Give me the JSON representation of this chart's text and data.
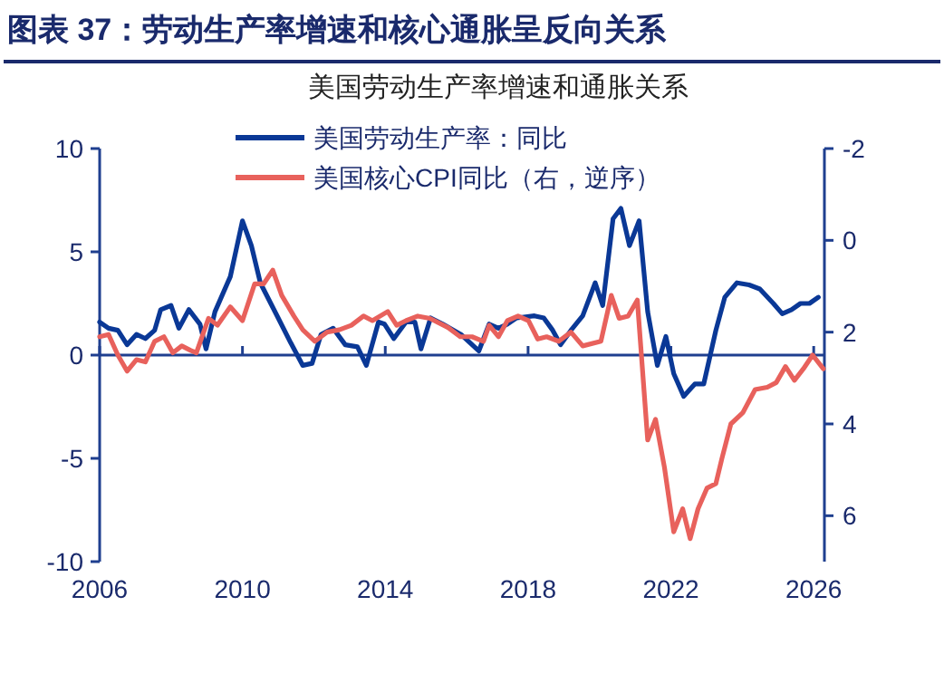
{
  "chart_data": {
    "type": "line",
    "title": "图表 37：劳动生产率增速和核心通胀呈反向关系",
    "subtitle": "美国劳动生产率增速和通胀关系",
    "xlim": [
      2006,
      2026.3
    ],
    "xticks": [
      2006,
      2010,
      2014,
      2018,
      2022,
      2026
    ],
    "ylim": [
      -10,
      10
    ],
    "yticks": [
      -10,
      -5,
      0,
      5,
      10
    ],
    "y2lim": [
      7,
      -2
    ],
    "y2ticks": [
      6,
      4,
      2,
      0,
      -2
    ],
    "legend": "top",
    "grid": false,
    "ref_lines": [
      {
        "axis": "y",
        "value": 0,
        "color": "#1f3f8f"
      }
    ],
    "series": [
      {
        "name": "美国劳动生产率：同比",
        "color": "#0a3896",
        "x": [
          2006.0,
          2006.25,
          2006.51,
          2006.77,
          2007.03,
          2007.28,
          2007.54,
          2007.71,
          2008.0,
          2008.22,
          2008.5,
          2008.81,
          2008.98,
          2009.23,
          2009.66,
          2010.0,
          2010.25,
          2010.5,
          2011.0,
          2011.35,
          2011.69,
          2011.95,
          2012.2,
          2012.54,
          2012.88,
          2013.22,
          2013.47,
          2013.81,
          2013.98,
          2014.24,
          2014.58,
          2014.83,
          2015.0,
          2015.27,
          2015.61,
          2016.12,
          2016.62,
          2016.91,
          2017.17,
          2017.42,
          2017.68,
          2018.18,
          2018.44,
          2018.69,
          2018.91,
          2019.2,
          2019.53,
          2019.88,
          2020.09,
          2020.38,
          2020.6,
          2020.84,
          2021.11,
          2021.35,
          2021.62,
          2021.86,
          2022.08,
          2022.36,
          2022.67,
          2022.92,
          2023.26,
          2023.51,
          2023.85,
          2024.19,
          2024.49,
          2024.87,
          2025.12,
          2025.38,
          2025.63,
          2025.88,
          2026.13
        ],
        "values": [
          1.6,
          1.3,
          1.2,
          0.5,
          1.0,
          0.8,
          1.2,
          2.2,
          2.4,
          1.3,
          2.2,
          1.5,
          0.3,
          2.1,
          3.8,
          6.5,
          5.3,
          3.5,
          1.8,
          0.6,
          -0.5,
          -0.4,
          1.0,
          1.3,
          0.5,
          0.4,
          -0.5,
          1.6,
          1.5,
          0.8,
          1.6,
          1.6,
          0.3,
          1.8,
          1.5,
          1.0,
          0.2,
          1.5,
          1.3,
          1.5,
          1.8,
          1.9,
          1.8,
          1.2,
          0.5,
          1.2,
          1.9,
          3.5,
          2.4,
          6.6,
          7.1,
          5.3,
          6.5,
          2.1,
          -0.5,
          0.9,
          -0.9,
          -2.0,
          -1.4,
          -1.4,
          1.2,
          2.8,
          3.5,
          3.4,
          3.2,
          2.5,
          2.0,
          2.2,
          2.5,
          2.5,
          2.8
        ]
      },
      {
        "name": "美国核心CPI同比（右，逆序）",
        "color": "#e8615c",
        "axis": "y2",
        "x": [
          2006.0,
          2006.25,
          2006.51,
          2006.77,
          2007.03,
          2007.28,
          2007.54,
          2007.8,
          2008.05,
          2008.3,
          2008.55,
          2008.71,
          2009.05,
          2009.3,
          2009.66,
          2010.0,
          2010.34,
          2010.59,
          2010.85,
          2011.1,
          2011.44,
          2011.69,
          2012.03,
          2012.37,
          2012.71,
          2013.05,
          2013.39,
          2013.64,
          2014.07,
          2014.32,
          2014.58,
          2014.91,
          2015.25,
          2015.76,
          2016.1,
          2016.43,
          2016.75,
          2016.91,
          2017.17,
          2017.42,
          2017.72,
          2018.01,
          2018.27,
          2018.52,
          2018.86,
          2019.2,
          2019.53,
          2020.04,
          2020.33,
          2020.55,
          2020.8,
          2021.06,
          2021.35,
          2021.57,
          2021.82,
          2022.08,
          2022.33,
          2022.54,
          2022.76,
          2023.01,
          2023.26,
          2023.43,
          2023.68,
          2024.02,
          2024.36,
          2024.7,
          2024.95,
          2025.21,
          2025.46,
          2025.71,
          2025.97,
          2026.27
        ],
        "values": [
          2.1,
          2.05,
          2.5,
          2.85,
          2.6,
          2.65,
          2.2,
          2.1,
          2.45,
          2.3,
          2.4,
          2.45,
          1.7,
          1.85,
          1.45,
          1.75,
          0.95,
          0.95,
          0.65,
          1.2,
          1.65,
          1.95,
          2.2,
          2.0,
          1.95,
          1.85,
          1.65,
          1.75,
          1.55,
          1.85,
          1.75,
          1.65,
          1.7,
          1.9,
          2.1,
          2.1,
          2.2,
          1.85,
          2.1,
          1.75,
          1.65,
          1.75,
          2.15,
          2.1,
          2.2,
          2.0,
          2.3,
          2.2,
          1.2,
          1.7,
          1.65,
          1.3,
          4.35,
          3.9,
          4.95,
          6.35,
          5.85,
          6.5,
          5.85,
          5.4,
          5.3,
          4.75,
          4.0,
          3.75,
          3.25,
          3.2,
          3.1,
          2.75,
          3.05,
          2.8,
          2.5,
          2.8
        ]
      }
    ]
  }
}
